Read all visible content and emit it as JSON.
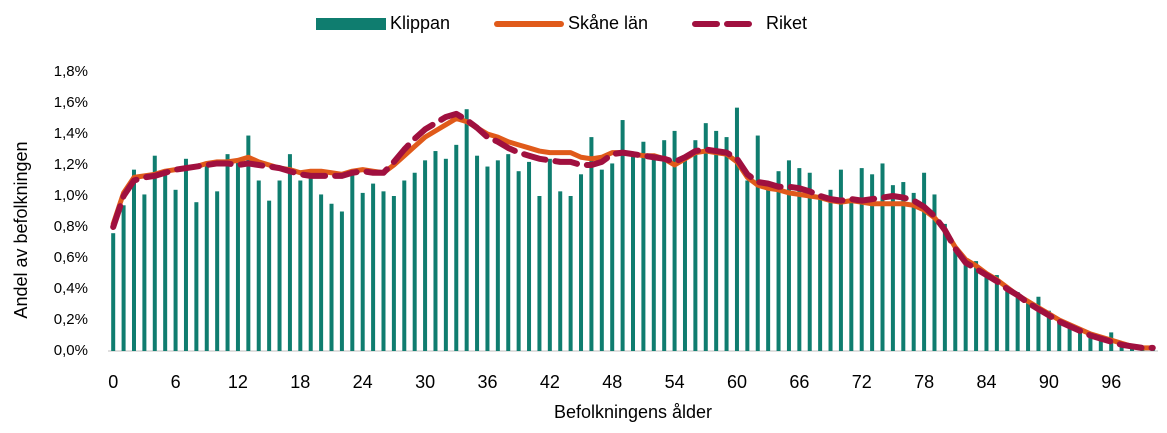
{
  "chart_data": {
    "type": "bar",
    "x_label": "Befolkningens ålder",
    "y_label": "Andel av befolkningen",
    "legend": "top",
    "grid": false,
    "categories": [
      "0",
      null,
      null,
      null,
      null,
      null,
      "6",
      null,
      null,
      null,
      null,
      null,
      "12",
      null,
      null,
      null,
      null,
      null,
      "18",
      null,
      null,
      null,
      null,
      null,
      "24",
      null,
      null,
      null,
      null,
      null,
      "30",
      null,
      null,
      null,
      null,
      null,
      "36",
      null,
      null,
      null,
      null,
      null,
      "42",
      null,
      null,
      null,
      null,
      null,
      "48",
      null,
      null,
      null,
      null,
      null,
      "54",
      null,
      null,
      null,
      null,
      null,
      "60",
      null,
      null,
      null,
      null,
      null,
      "66",
      null,
      null,
      null,
      null,
      null,
      "72",
      null,
      null,
      null,
      null,
      null,
      "78",
      null,
      null,
      null,
      null,
      null,
      "84",
      null,
      null,
      null,
      null,
      null,
      "90",
      null,
      null,
      null,
      null,
      null,
      "96",
      null,
      null,
      null,
      null
    ],
    "series": [
      {
        "name": "Klippan",
        "type": "bar",
        "color": "#0f7d6f",
        "values": [
          0.76,
          0.94,
          1.17,
          1.01,
          1.26,
          1.14,
          1.04,
          1.24,
          0.96,
          1.21,
          1.03,
          1.27,
          1.22,
          1.39,
          1.1,
          0.97,
          1.1,
          1.27,
          1.1,
          1.12,
          1.01,
          0.95,
          0.9,
          1.14,
          1.02,
          1.08,
          1.03,
          1.0,
          1.1,
          1.15,
          1.23,
          1.29,
          1.24,
          1.33,
          1.56,
          1.26,
          1.19,
          1.23,
          1.27,
          1.16,
          1.22,
          1.0,
          1.24,
          1.03,
          1.0,
          1.14,
          1.38,
          1.17,
          1.21,
          1.49,
          1.27,
          1.35,
          1.24,
          1.36,
          1.42,
          1.25,
          1.36,
          1.47,
          1.42,
          1.38,
          1.57,
          1.1,
          1.39,
          1.05,
          1.16,
          1.23,
          1.18,
          1.15,
          1.01,
          1.04,
          1.17,
          0.97,
          1.18,
          1.14,
          1.21,
          1.07,
          1.09,
          1.02,
          1.15,
          1.01,
          0.82,
          0.66,
          0.58,
          0.58,
          0.49,
          0.49,
          0.42,
          0.38,
          0.32,
          0.35,
          0.26,
          0.2,
          0.17,
          0.12,
          0.09,
          0.08,
          0.12,
          0.05,
          0.03,
          0.02,
          0.02
        ]
      },
      {
        "name": "Skåne län",
        "type": "line",
        "style": "solid",
        "color": "#e05a1a",
        "values": [
          0.82,
          1.02,
          1.12,
          1.13,
          1.14,
          1.16,
          1.17,
          1.18,
          1.19,
          1.21,
          1.22,
          1.22,
          1.23,
          1.25,
          1.22,
          1.2,
          1.18,
          1.17,
          1.15,
          1.16,
          1.16,
          1.15,
          1.14,
          1.16,
          1.17,
          1.16,
          1.15,
          1.2,
          1.26,
          1.32,
          1.38,
          1.42,
          1.46,
          1.5,
          1.48,
          1.44,
          1.4,
          1.38,
          1.35,
          1.33,
          1.31,
          1.29,
          1.28,
          1.28,
          1.28,
          1.25,
          1.24,
          1.25,
          1.28,
          1.28,
          1.27,
          1.26,
          1.26,
          1.24,
          1.2,
          1.24,
          1.28,
          1.29,
          1.28,
          1.27,
          1.22,
          1.12,
          1.07,
          1.05,
          1.04,
          1.02,
          1.01,
          1.0,
          0.99,
          0.97,
          0.96,
          0.97,
          0.96,
          0.95,
          0.95,
          0.95,
          0.95,
          0.94,
          0.91,
          0.86,
          0.78,
          0.67,
          0.59,
          0.55,
          0.5,
          0.46,
          0.41,
          0.36,
          0.32,
          0.28,
          0.24,
          0.2,
          0.17,
          0.14,
          0.11,
          0.09,
          0.07,
          0.05,
          0.03,
          0.02,
          0.02
        ]
      },
      {
        "name": "Riket",
        "type": "line",
        "style": "dashed",
        "color": "#a0103f",
        "values": [
          0.8,
          1.0,
          1.1,
          1.12,
          1.13,
          1.15,
          1.17,
          1.18,
          1.19,
          1.2,
          1.21,
          1.21,
          1.2,
          1.21,
          1.2,
          1.19,
          1.18,
          1.16,
          1.14,
          1.13,
          1.13,
          1.13,
          1.13,
          1.15,
          1.16,
          1.15,
          1.15,
          1.22,
          1.3,
          1.37,
          1.43,
          1.47,
          1.51,
          1.53,
          1.49,
          1.44,
          1.38,
          1.35,
          1.31,
          1.28,
          1.26,
          1.24,
          1.23,
          1.22,
          1.22,
          1.2,
          1.2,
          1.22,
          1.27,
          1.28,
          1.27,
          1.26,
          1.25,
          1.24,
          1.22,
          1.25,
          1.29,
          1.3,
          1.29,
          1.28,
          1.24,
          1.14,
          1.09,
          1.08,
          1.06,
          1.06,
          1.05,
          1.03,
          1.0,
          0.98,
          0.97,
          0.98,
          0.97,
          0.98,
          0.99,
          1.0,
          0.99,
          0.97,
          0.93,
          0.87,
          0.78,
          0.66,
          0.57,
          0.53,
          0.49,
          0.45,
          0.4,
          0.36,
          0.31,
          0.27,
          0.23,
          0.19,
          0.16,
          0.13,
          0.1,
          0.08,
          0.06,
          0.04,
          0.03,
          0.02,
          0.02
        ]
      }
    ],
    "ylim": [
      0,
      1.8
    ],
    "yticks": [
      {
        "value": 0,
        "label": "0,0%"
      },
      {
        "value": 0.2,
        "label": "0,2%"
      },
      {
        "value": 0.4,
        "label": "0,4%"
      },
      {
        "value": 0.6,
        "label": "0,6%"
      },
      {
        "value": 0.8,
        "label": "0,8%"
      },
      {
        "value": 1.0,
        "label": "1,0%"
      },
      {
        "value": 1.2,
        "label": "1,2%"
      },
      {
        "value": 1.4,
        "label": "1,4%"
      },
      {
        "value": 1.6,
        "label": "1,6%"
      },
      {
        "value": 1.8,
        "label": "1,8%"
      }
    ]
  }
}
